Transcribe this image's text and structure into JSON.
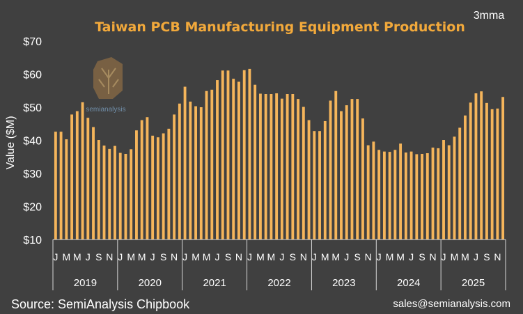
{
  "chart_data": {
    "type": "bar",
    "title": "Taiwan PCB Manufacturing Equipment Production",
    "corner_note": "3mma",
    "ylabel": "Value ($M)",
    "ylim": [
      10,
      70
    ],
    "yticks": [
      "$10",
      "$20",
      "$30",
      "$40",
      "$50",
      "$60",
      "$70"
    ],
    "years": [
      "2019",
      "2020",
      "2021",
      "2022",
      "2023",
      "2024",
      "2025"
    ],
    "month_labels": [
      "J",
      "M",
      "M",
      "J",
      "S",
      "N"
    ],
    "month_label_index": [
      0,
      2,
      4,
      6,
      8,
      10
    ],
    "bar_color": "#F5B55B",
    "background_color": "#404040",
    "title_color": "#F2A93B",
    "series": [
      {
        "values": [
          42.6,
          42.6,
          40.3,
          47.8,
          48.8,
          51.5,
          46.8,
          44.0,
          40.1,
          38.4,
          37.4,
          38.3,
          36.2,
          35.9,
          37.3,
          43.0,
          46.1,
          47.0,
          41.4,
          40.9,
          42.1,
          43.5,
          47.8,
          51.1,
          56.2,
          51.7,
          50.3,
          50.0,
          54.9,
          55.3,
          58.2,
          61.1,
          61.1,
          58.6,
          57.7,
          61.2,
          61.6,
          56.8,
          54.1,
          54.0,
          54.0,
          54.2,
          52.6,
          54.0,
          54.0,
          52.5,
          50.1,
          46.1,
          42.8,
          42.8,
          45.8,
          52.0,
          54.9,
          48.8,
          50.6,
          52.5,
          52.5,
          46.6,
          38.5,
          39.6,
          37.1,
          36.6,
          36.5,
          37.1,
          39.0,
          36.3,
          36.6,
          35.8,
          35.9,
          36.1,
          37.8,
          37.6,
          40.1,
          38.5,
          41.1,
          43.8,
          47.5,
          51.4,
          54.2,
          54.8,
          51.3,
          49.4,
          49.6,
          53.1
        ]
      }
    ]
  },
  "source": "Source: SemiAnalysis Chipbook",
  "email": "sales@semianalysis.com",
  "logo": {
    "text": "semianalysis",
    "icon": "tree-circuit-logo"
  }
}
